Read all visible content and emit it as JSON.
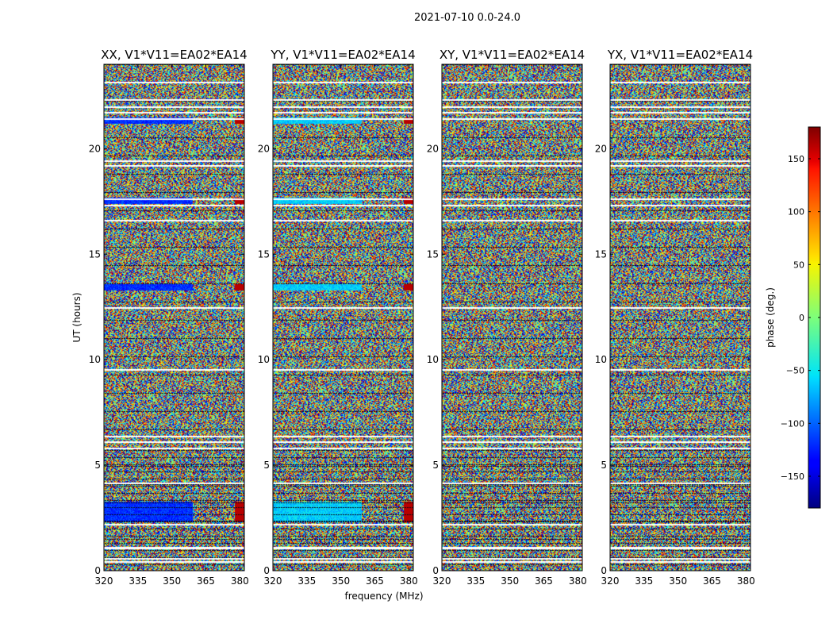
{
  "chart_data": {
    "type": "heatmap",
    "title": "2021-07-10 0.0-24.0",
    "xlabel": "frequency (MHz)",
    "ylabel": "UT (hours)",
    "xlim": [
      320,
      382
    ],
    "ylim": [
      0,
      24
    ],
    "xticks": [
      320,
      335,
      350,
      365,
      380
    ],
    "yticks": [
      0,
      5,
      10,
      15,
      20
    ],
    "panels": [
      {
        "title": "XX, V1*V11=EA02*EA14",
        "polarization": "XX"
      },
      {
        "title": "YY, V1*V11=EA02*EA14",
        "polarization": "YY"
      },
      {
        "title": "XY, V1*V11=EA02*EA14",
        "polarization": "XY"
      },
      {
        "title": "YX, V1*V11=EA02*EA14",
        "polarization": "YX"
      }
    ],
    "flagged_rows_hours": [
      0.4,
      0.55,
      1.05,
      1.1,
      2.2,
      4.15,
      5.8,
      6.1,
      6.35,
      9.5,
      12.45,
      16.6,
      17.3,
      17.6,
      19.2,
      19.4,
      21.4,
      21.7,
      21.95,
      22.3,
      23.15
    ],
    "colorbar": {
      "label": "phase (deg.)",
      "range": [
        -180,
        180
      ],
      "ticks": [
        150,
        100,
        50,
        0,
        -50,
        -100,
        -150
      ],
      "tick_labels": [
        "150",
        "100",
        "50",
        "0",
        "−50",
        "−100",
        "−150"
      ],
      "colormap": "jet"
    }
  }
}
